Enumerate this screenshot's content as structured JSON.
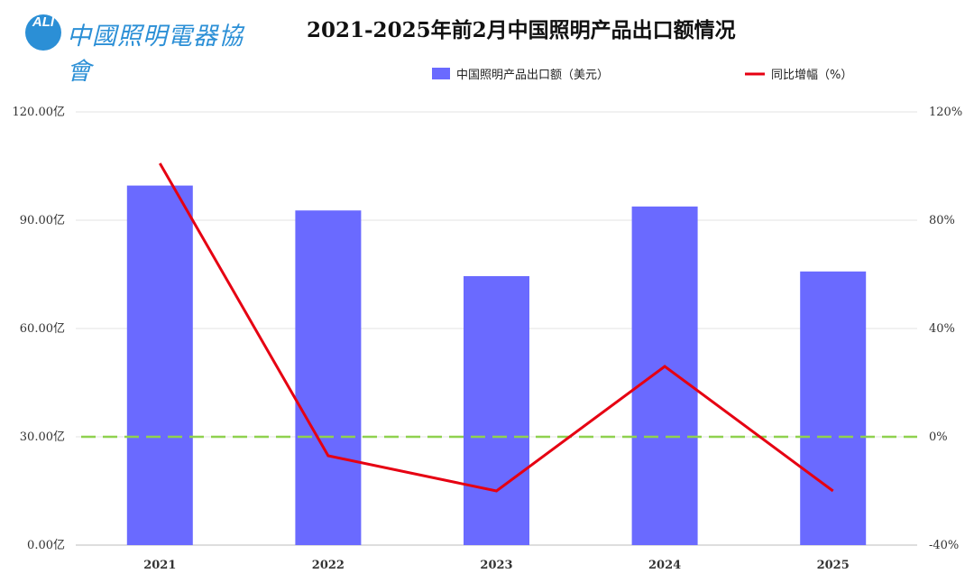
{
  "logo": {
    "badge": "ALI",
    "text": "中國照明電器協會"
  },
  "chart_data": {
    "type": "bar",
    "title": "2021-2025年前2月中国照明产品出口额情况",
    "categories": [
      "2021",
      "2022",
      "2023",
      "2024",
      "2025"
    ],
    "series": [
      {
        "name": "中国照明产品出口额（美元）",
        "type": "bar",
        "axis": "left",
        "color": "#6a6aff",
        "values": [
          99.6,
          92.7,
          74.5,
          93.8,
          75.8
        ]
      },
      {
        "name": "同比增幅（%）",
        "type": "line",
        "axis": "right",
        "color": "#e60012",
        "values": [
          101,
          -7,
          -20,
          26,
          -20
        ]
      }
    ],
    "reference_line": {
      "axis": "right",
      "value": 0,
      "color": "#8fd14f",
      "style": "dashed"
    },
    "y_left": {
      "ylim": [
        0,
        120
      ],
      "ticks": [
        0,
        30,
        60,
        90,
        120
      ],
      "tick_labels": [
        "0.00亿",
        "30.00亿",
        "60.00亿",
        "90.00亿",
        "120.00亿"
      ]
    },
    "y_right": {
      "ylim": [
        -40,
        120
      ],
      "ticks": [
        -40,
        0,
        40,
        80,
        120
      ],
      "tick_labels": [
        "-40%",
        "0%",
        "40%",
        "80%",
        "120%"
      ]
    },
    "grid": true,
    "legend_position": "top-right"
  }
}
